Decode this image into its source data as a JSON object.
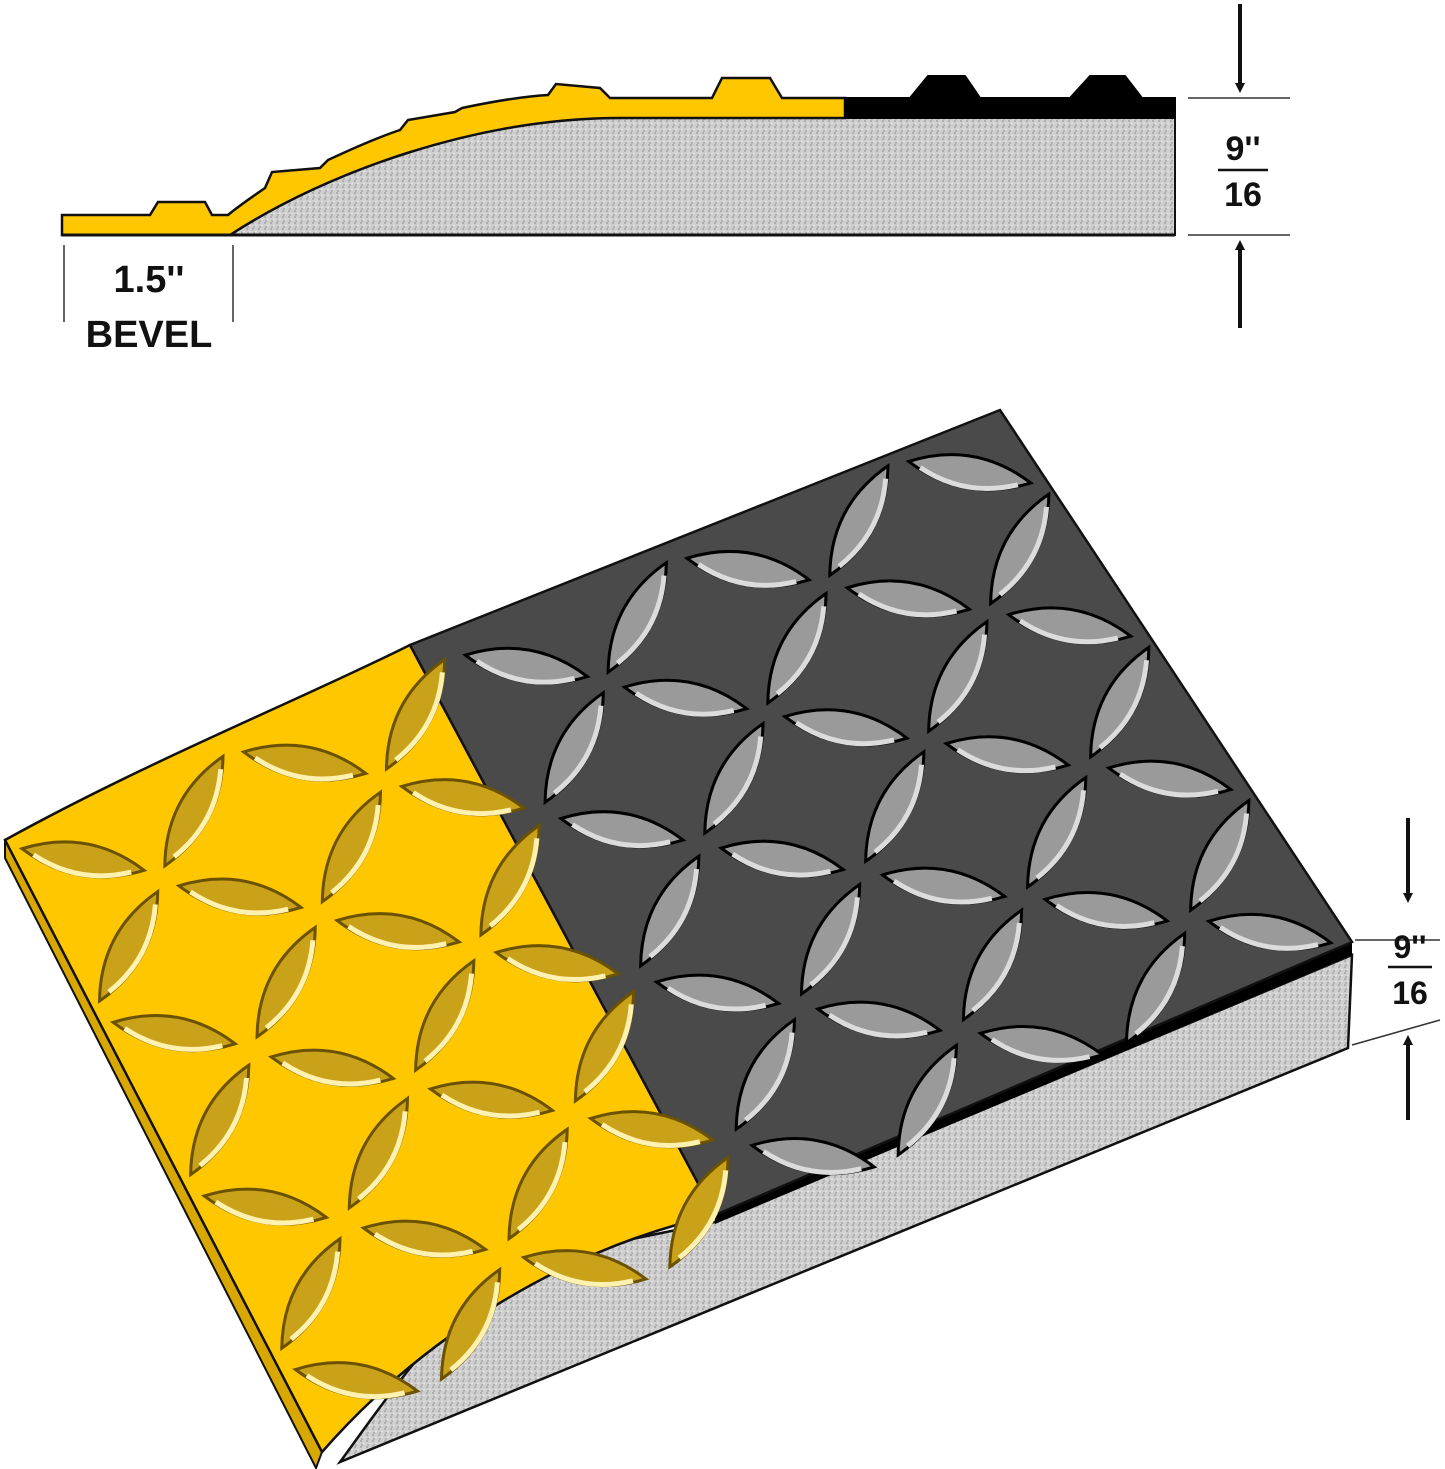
{
  "profile": {
    "bevel_value": "1.5''",
    "bevel_label": "BEVEL",
    "thickness_numerator": "9''",
    "thickness_denominator": "16"
  },
  "perspective": {
    "thickness_numerator": "9''",
    "thickness_denominator": "16"
  },
  "colors": {
    "yellow": "#FFC700",
    "black_surface": "#4a4a4a",
    "foam": "#c8c8c8",
    "outline": "#111111"
  }
}
